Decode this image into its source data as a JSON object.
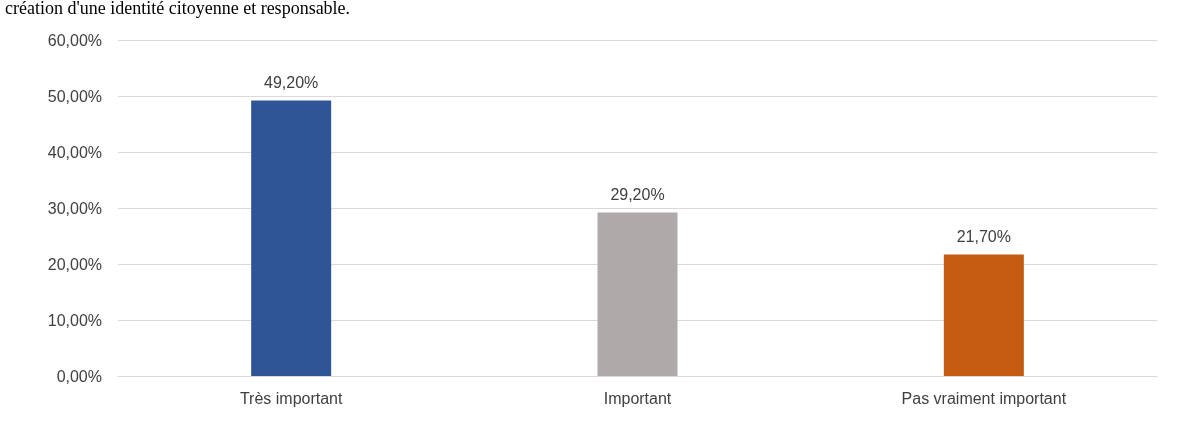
{
  "chart_data": {
    "type": "bar",
    "title": "création d'une identité citoyenne et responsable.",
    "categories": [
      "Très important",
      "Important",
      "Pas vraiment important"
    ],
    "values": [
      49.2,
      29.2,
      21.7
    ],
    "colors": [
      "#2f5597",
      "#aeaaaa",
      "#c55a11"
    ],
    "value_labels": [
      "49,20%",
      "29,20%",
      "21,70%"
    ],
    "ylim": [
      0,
      60
    ],
    "yticks": [
      {
        "value": 0,
        "label": "0,00%"
      },
      {
        "value": 10,
        "label": "10,00%"
      },
      {
        "value": 20,
        "label": "20,00%"
      },
      {
        "value": 30,
        "label": "30,00%"
      },
      {
        "value": 40,
        "label": "40,00%"
      },
      {
        "value": 50,
        "label": "50,00%"
      },
      {
        "value": 60,
        "label": "60,00%"
      }
    ],
    "grid": "y"
  }
}
